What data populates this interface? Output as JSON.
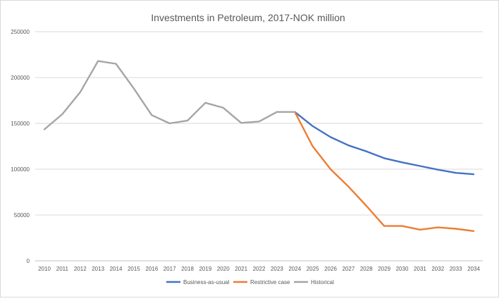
{
  "chart_data": {
    "type": "line",
    "title": "Investments in Petroleum, 2017-NOK million",
    "xlabel": "",
    "ylabel": "",
    "ylim": [
      0,
      250000
    ],
    "yticks": [
      "0",
      "50000",
      "100000",
      "150000",
      "200000",
      "250000"
    ],
    "grid": true,
    "legend_position": "bottom",
    "categories": [
      "2010",
      "2011",
      "2012",
      "2013",
      "2014",
      "2015",
      "2016",
      "2017",
      "2018",
      "2019",
      "2020",
      "2021",
      "2022",
      "2023",
      "2024",
      "2025",
      "2026",
      "2027",
      "2028",
      "2029",
      "2030",
      "2031",
      "2032",
      "2033",
      "2034"
    ],
    "series": [
      {
        "name": "Business-as-usual",
        "color": "#4472c4",
        "values": [
          null,
          null,
          null,
          null,
          null,
          null,
          null,
          null,
          null,
          null,
          null,
          null,
          null,
          null,
          162500,
          147000,
          135000,
          126000,
          119500,
          112000,
          107500,
          103500,
          99500,
          96000,
          94500
        ]
      },
      {
        "name": "Restrictive case",
        "color": "#ed7d31",
        "values": [
          null,
          null,
          null,
          null,
          null,
          null,
          null,
          null,
          null,
          null,
          null,
          null,
          null,
          null,
          162500,
          125000,
          100000,
          81000,
          60000,
          38000,
          38000,
          34000,
          36500,
          35000,
          32500
        ]
      },
      {
        "name": "Historical",
        "color": "#a5a5a5",
        "values": [
          143500,
          160000,
          184000,
          218000,
          215000,
          188000,
          159000,
          150000,
          153000,
          172500,
          167000,
          150500,
          152000,
          162500,
          162500,
          null,
          null,
          null,
          null,
          null,
          null,
          null,
          null,
          null,
          null
        ]
      }
    ]
  }
}
